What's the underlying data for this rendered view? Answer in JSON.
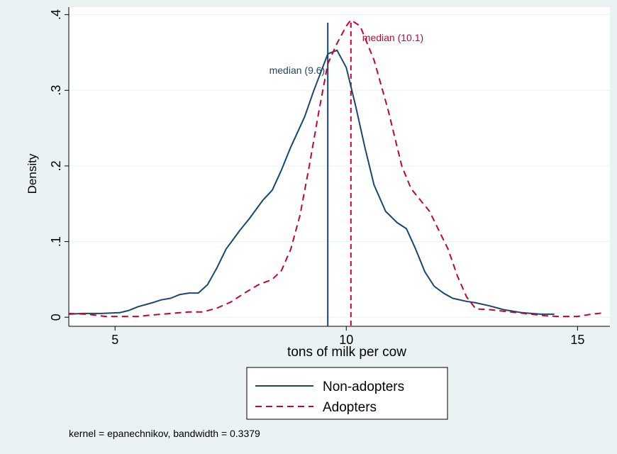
{
  "chart_data": {
    "type": "line",
    "ylabel": "Density",
    "xlabel": "tons of milk per cow",
    "xlim": [
      4,
      15.7
    ],
    "ylim": [
      -0.012,
      0.41
    ],
    "x_ticks": [
      5,
      10,
      15
    ],
    "x_tick_labels": [
      "5",
      "10",
      "15"
    ],
    "y_ticks": [
      0,
      0.1,
      0.2,
      0.3,
      0.4
    ],
    "y_tick_labels": [
      "0",
      ".1",
      ".2",
      ".3",
      ".4"
    ],
    "grid": true,
    "legend_position": "bottom",
    "note": "kernel = epanechnikov, bandwidth = 0.3379",
    "series": [
      {
        "name": "Non-adopters",
        "color": "#1a476f",
        "dash": "solid",
        "points": [
          [
            4.0,
            0.004
          ],
          [
            4.3,
            0.005
          ],
          [
            4.7,
            0.005
          ],
          [
            5.1,
            0.006
          ],
          [
            5.3,
            0.009
          ],
          [
            5.5,
            0.014
          ],
          [
            5.8,
            0.019
          ],
          [
            6.0,
            0.023
          ],
          [
            6.2,
            0.025
          ],
          [
            6.4,
            0.03
          ],
          [
            6.6,
            0.032
          ],
          [
            6.8,
            0.032
          ],
          [
            7.0,
            0.043
          ],
          [
            7.2,
            0.065
          ],
          [
            7.4,
            0.09
          ],
          [
            7.7,
            0.115
          ],
          [
            7.9,
            0.13
          ],
          [
            8.2,
            0.155
          ],
          [
            8.4,
            0.168
          ],
          [
            8.6,
            0.195
          ],
          [
            8.8,
            0.225
          ],
          [
            9.1,
            0.265
          ],
          [
            9.3,
            0.3
          ],
          [
            9.6,
            0.348
          ],
          [
            9.8,
            0.353
          ],
          [
            10.0,
            0.33
          ],
          [
            10.2,
            0.28
          ],
          [
            10.4,
            0.225
          ],
          [
            10.6,
            0.175
          ],
          [
            10.85,
            0.14
          ],
          [
            11.1,
            0.125
          ],
          [
            11.3,
            0.117
          ],
          [
            11.5,
            0.09
          ],
          [
            11.7,
            0.06
          ],
          [
            11.9,
            0.041
          ],
          [
            12.1,
            0.032
          ],
          [
            12.3,
            0.025
          ],
          [
            12.6,
            0.021
          ],
          [
            12.8,
            0.019
          ],
          [
            13.1,
            0.015
          ],
          [
            13.4,
            0.01
          ],
          [
            13.8,
            0.006
          ],
          [
            14.2,
            0.004
          ],
          [
            14.5,
            0.004
          ]
        ]
      },
      {
        "name": "Adopters",
        "color": "#c10534",
        "dash": "dashed",
        "points": [
          [
            4.0,
            0.005
          ],
          [
            4.4,
            0.004
          ],
          [
            4.8,
            0.001
          ],
          [
            5.5,
            0.001
          ],
          [
            5.8,
            0.003
          ],
          [
            6.2,
            0.005
          ],
          [
            6.6,
            0.007
          ],
          [
            6.9,
            0.007
          ],
          [
            7.2,
            0.012
          ],
          [
            7.5,
            0.02
          ],
          [
            7.8,
            0.032
          ],
          [
            8.1,
            0.043
          ],
          [
            8.4,
            0.05
          ],
          [
            8.6,
            0.062
          ],
          [
            8.8,
            0.09
          ],
          [
            9.0,
            0.135
          ],
          [
            9.2,
            0.2
          ],
          [
            9.4,
            0.27
          ],
          [
            9.6,
            0.335
          ],
          [
            9.8,
            0.362
          ],
          [
            10.0,
            0.385
          ],
          [
            10.1,
            0.393
          ],
          [
            10.3,
            0.385
          ],
          [
            10.6,
            0.34
          ],
          [
            10.9,
            0.275
          ],
          [
            11.2,
            0.2
          ],
          [
            11.4,
            0.17
          ],
          [
            11.6,
            0.155
          ],
          [
            11.8,
            0.14
          ],
          [
            12.0,
            0.115
          ],
          [
            12.2,
            0.09
          ],
          [
            12.4,
            0.055
          ],
          [
            12.6,
            0.027
          ],
          [
            12.8,
            0.011
          ],
          [
            13.1,
            0.01
          ],
          [
            13.4,
            0.008
          ],
          [
            13.7,
            0.006
          ],
          [
            14.0,
            0.004
          ],
          [
            14.3,
            0.002
          ],
          [
            14.6,
            0.001
          ],
          [
            15.0,
            0.001
          ],
          [
            15.3,
            0.004
          ],
          [
            15.6,
            0.006
          ]
        ]
      }
    ],
    "reference_lines": [
      {
        "x": 9.6,
        "label": "median (9.6)",
        "color": "#1a476f",
        "dash": "solid"
      },
      {
        "x": 10.1,
        "label": "median (10.1)",
        "color": "#c10534",
        "dash": "dashed"
      }
    ]
  }
}
